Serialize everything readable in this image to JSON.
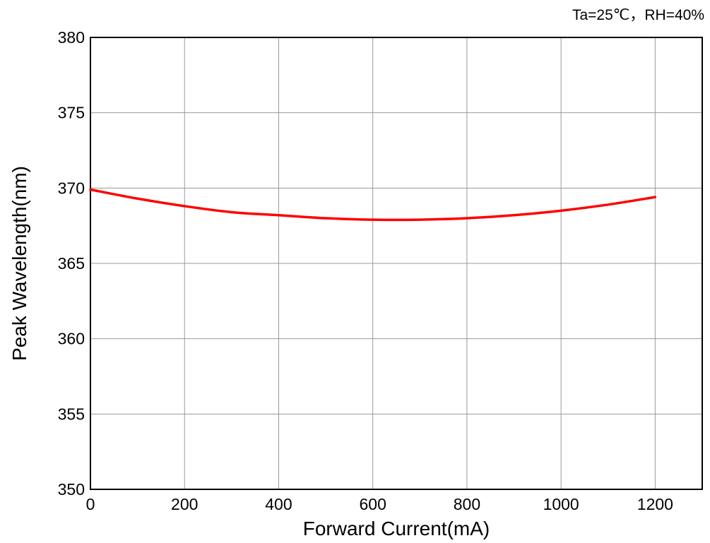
{
  "chart_data": {
    "type": "line",
    "annotation": "Ta=25℃，RH=40%",
    "xlabel": "Forward Current(mA)",
    "ylabel": "Peak Wavelength(nm)",
    "xlim": [
      0,
      1300
    ],
    "ylim": [
      350,
      380
    ],
    "x_ticks": [
      0,
      200,
      400,
      600,
      800,
      1000,
      1200
    ],
    "y_ticks": [
      350,
      355,
      360,
      365,
      370,
      375,
      380
    ],
    "x_tick_labels": [
      "0",
      "200",
      "400",
      "600",
      "800",
      "1000",
      "1200"
    ],
    "y_tick_labels": [
      "350",
      "355",
      "360",
      "365",
      "370",
      "375",
      "380"
    ],
    "grid": true,
    "colors": {
      "line": "#ff0000",
      "grid": "#999999",
      "axis": "#000000"
    },
    "series": [
      {
        "x": [
          0,
          100,
          200,
          300,
          400,
          500,
          600,
          700,
          800,
          900,
          1000,
          1100,
          1200
        ],
        "y": [
          369.9,
          369.3,
          368.8,
          368.4,
          368.2,
          368.0,
          367.9,
          367.9,
          368.0,
          368.2,
          368.5,
          368.9,
          369.4
        ]
      }
    ]
  }
}
